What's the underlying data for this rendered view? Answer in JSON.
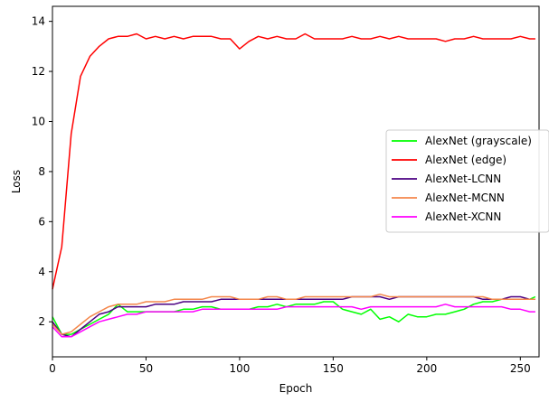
{
  "chart_data": {
    "type": "line",
    "title": "",
    "xlabel": "Epoch",
    "ylabel": "Loss",
    "xlim": [
      0,
      260
    ],
    "ylim": [
      0.6,
      14.6
    ],
    "grid": false,
    "legend_position": "center-right",
    "x_ticks": [
      0,
      50,
      100,
      150,
      200,
      250
    ],
    "y_ticks": [
      2,
      4,
      6,
      8,
      10,
      12,
      14
    ],
    "x": [
      0,
      5,
      10,
      15,
      20,
      25,
      30,
      35,
      40,
      45,
      50,
      55,
      60,
      65,
      70,
      75,
      80,
      85,
      90,
      95,
      100,
      105,
      110,
      115,
      120,
      125,
      130,
      135,
      140,
      145,
      150,
      155,
      160,
      165,
      170,
      175,
      180,
      185,
      190,
      195,
      200,
      205,
      210,
      215,
      220,
      225,
      230,
      235,
      240,
      245,
      250,
      255,
      258
    ],
    "series": [
      {
        "name": "AlexNet (grayscale)",
        "color": "#00ff00",
        "values": [
          2.2,
          1.5,
          1.5,
          1.7,
          1.9,
          2.1,
          2.3,
          2.7,
          2.4,
          2.4,
          2.4,
          2.4,
          2.4,
          2.4,
          2.5,
          2.5,
          2.6,
          2.6,
          2.5,
          2.5,
          2.5,
          2.5,
          2.6,
          2.6,
          2.7,
          2.6,
          2.7,
          2.7,
          2.7,
          2.8,
          2.8,
          2.5,
          2.4,
          2.3,
          2.5,
          2.1,
          2.2,
          2.0,
          2.3,
          2.2,
          2.2,
          2.3,
          2.3,
          2.4,
          2.5,
          2.7,
          2.8,
          2.8,
          2.9,
          2.9,
          2.9,
          2.9,
          3.0
        ]
      },
      {
        "name": "AlexNet (edge)",
        "color": "#ff0000",
        "values": [
          3.3,
          5.0,
          9.5,
          11.8,
          12.6,
          13.0,
          13.3,
          13.4,
          13.4,
          13.5,
          13.3,
          13.4,
          13.3,
          13.4,
          13.3,
          13.4,
          13.4,
          13.4,
          13.3,
          13.3,
          12.9,
          13.2,
          13.4,
          13.3,
          13.4,
          13.3,
          13.3,
          13.5,
          13.3,
          13.3,
          13.3,
          13.3,
          13.4,
          13.3,
          13.3,
          13.4,
          13.3,
          13.4,
          13.3,
          13.3,
          13.3,
          13.3,
          13.2,
          13.3,
          13.3,
          13.4,
          13.3,
          13.3,
          13.3,
          13.3,
          13.4,
          13.3,
          13.3
        ]
      },
      {
        "name": "AlexNet-LCNN",
        "color": "#4b0082",
        "values": [
          2.0,
          1.5,
          1.4,
          1.7,
          2.0,
          2.3,
          2.4,
          2.6,
          2.6,
          2.6,
          2.6,
          2.7,
          2.7,
          2.7,
          2.8,
          2.8,
          2.8,
          2.8,
          2.9,
          2.9,
          2.9,
          2.9,
          2.9,
          2.9,
          2.9,
          2.9,
          2.9,
          2.9,
          2.9,
          2.9,
          2.9,
          2.9,
          3.0,
          3.0,
          3.0,
          3.0,
          2.9,
          3.0,
          3.0,
          3.0,
          3.0,
          3.0,
          3.0,
          3.0,
          3.0,
          3.0,
          2.9,
          2.9,
          2.9,
          3.0,
          3.0,
          2.9,
          2.9
        ]
      },
      {
        "name": "AlexNet-MCNN",
        "color": "#f4874b",
        "values": [
          1.9,
          1.5,
          1.6,
          1.9,
          2.2,
          2.4,
          2.6,
          2.7,
          2.7,
          2.7,
          2.8,
          2.8,
          2.8,
          2.9,
          2.9,
          2.9,
          2.9,
          3.0,
          3.0,
          3.0,
          2.9,
          2.9,
          2.9,
          3.0,
          3.0,
          2.9,
          2.9,
          3.0,
          3.0,
          3.0,
          3.0,
          3.0,
          3.0,
          3.0,
          3.0,
          3.1,
          3.0,
          3.0,
          3.0,
          3.0,
          3.0,
          3.0,
          3.0,
          3.0,
          3.0,
          3.0,
          3.0,
          2.9,
          2.9,
          2.9,
          2.9,
          2.9,
          2.9
        ]
      },
      {
        "name": "AlexNet-XCNN",
        "color": "#ff00ff",
        "values": [
          1.8,
          1.4,
          1.4,
          1.6,
          1.8,
          2.0,
          2.1,
          2.2,
          2.3,
          2.3,
          2.4,
          2.4,
          2.4,
          2.4,
          2.4,
          2.4,
          2.5,
          2.5,
          2.5,
          2.5,
          2.5,
          2.5,
          2.5,
          2.5,
          2.5,
          2.6,
          2.6,
          2.6,
          2.6,
          2.6,
          2.6,
          2.6,
          2.6,
          2.5,
          2.6,
          2.6,
          2.6,
          2.6,
          2.6,
          2.6,
          2.6,
          2.6,
          2.7,
          2.6,
          2.6,
          2.6,
          2.6,
          2.6,
          2.6,
          2.5,
          2.5,
          2.4,
          2.4
        ]
      }
    ]
  }
}
